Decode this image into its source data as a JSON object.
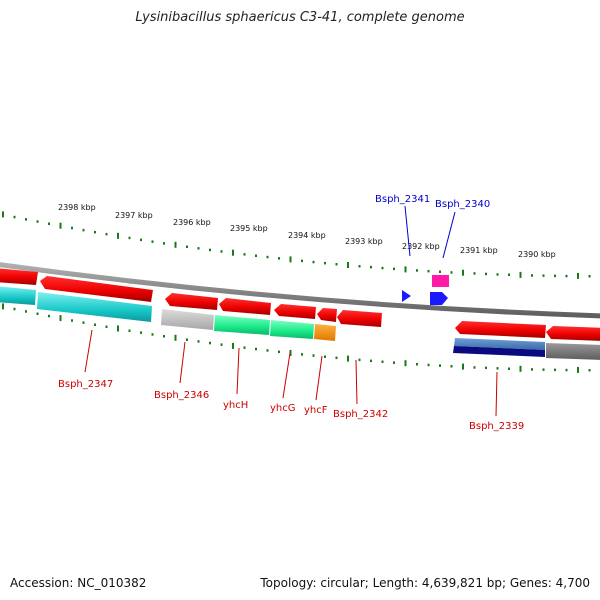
{
  "title": "Lysinibacillus sphaericus C3-41, complete genome",
  "footer": {
    "accession": "Accession: NC_010382",
    "summary": "Topology: circular; Length: 4,639,821 bp; Genes: 4,700"
  },
  "ruler": {
    "labels": [
      "2398 kbp",
      "2397 kbp",
      "2396 kbp",
      "2395 kbp",
      "2394 kbp",
      "2393 kbp",
      "2392 kbp",
      "2391 kbp",
      "2390 kbp"
    ]
  },
  "colors": {
    "gene_forward": "#ff0000",
    "gene_reverse": "#ff0000",
    "label_top": "#0000cc",
    "label_bottom": "#cc0000",
    "tick": "#1a7a1a",
    "backbone": "#8a8a8a"
  },
  "genes_top": [
    {
      "name": "Bsph_2341",
      "color": "#0000ff"
    },
    {
      "name": "Bsph_2340",
      "color": "#ff1aa8"
    }
  ],
  "genes_bottom": [
    {
      "name": "Bsph_2347"
    },
    {
      "name": "Bsph_2346"
    },
    {
      "name": "yhcH"
    },
    {
      "name": "yhcG"
    },
    {
      "name": "yhcF"
    },
    {
      "name": "Bsph_2342"
    },
    {
      "name": "Bsph_2339"
    }
  ]
}
